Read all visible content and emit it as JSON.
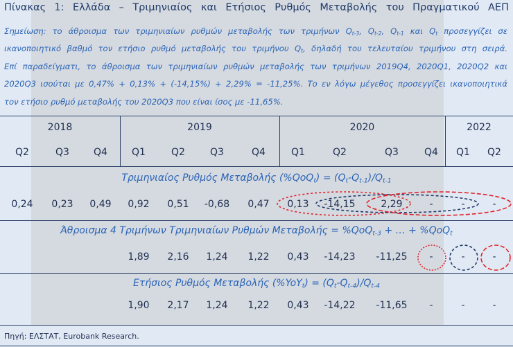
{
  "header": {
    "title": "Πίνακας 1: Ελλάδα – Τριμηνιαίος και Ετήσιος Ρυθμός Μεταβολής του Πραγματικού ΑΕΠ"
  },
  "note": [
    [
      [
        "Σημείωση: το άθροισμα των τριμηνιαίων ρυθμών μεταβολής των τριμήνων Q",
        "t-3"
      ],
      [
        ", Q",
        "t-2"
      ],
      [
        ", Q",
        "t-1"
      ],
      [
        " και Q",
        "t"
      ],
      [
        " προσεγγίζει σε"
      ]
    ],
    [
      [
        "ικανοποιητικό βαθμό τον ετήσιο ρυθμό μεταβολής του τριμήνου Q",
        "t"
      ],
      [
        ", δηλαδή του τελευταίου τριμήνου στη σειρά."
      ]
    ],
    [
      [
        "Επί παραδείγματι, το άθροισμα των τριμηνιαίων ρυθμών μεταβολής των τριμήνων 2019Q4, 2020Q1, 2020Q2 και"
      ]
    ],
    [
      [
        "2020Q3 ισούται με 0,47% + 0,13% + (-14,15%) + 2,29% = -11,25%. Το εν λόγω μέγεθος προσεγγίζει ικανοποιητικά"
      ]
    ],
    [
      [
        "τον ετήσιο ρυθμό μεταβολής του 2020Q3 που είναι ίσος με -11,65%."
      ]
    ]
  ],
  "table": {
    "years": [
      "2018",
      "2019",
      "2020",
      "2022"
    ],
    "quarters": [
      "Q2",
      "Q3",
      "Q4",
      "Q1",
      "Q2",
      "Q3",
      "Q4",
      "Q1",
      "Q2",
      "Q3",
      "Q4",
      "Q1",
      "Q2"
    ],
    "sections": [
      {
        "title": [
          [
            "Τριμηνιαίος Ρυθμός Μεταβολής (%QoQ",
            "t"
          ],
          [
            ") = (Q",
            "t"
          ],
          [
            "-Q",
            "t-1"
          ],
          [
            ")/Q",
            "t-1"
          ]
        ],
        "row": [
          "0,24",
          "0,23",
          "0,49",
          "0,92",
          "0,51",
          "-0,68",
          "0,47",
          "0,13",
          "-14,15",
          "2,29",
          "-",
          "-",
          "-"
        ]
      },
      {
        "title": [
          [
            "Άθροισμα 4 Τριμήνων Τριμηνιαίων Ρυθμών Μεταβολής = %QoQ",
            "t-3"
          ],
          [
            " + … + %QoQ",
            "t"
          ]
        ],
        "row": [
          null,
          null,
          null,
          "1,89",
          "2,16",
          "1,24",
          "1,22",
          "0,43",
          "-14,23",
          "-11,25",
          "-",
          "-",
          "-"
        ]
      },
      {
        "title": [
          [
            "Ετήσιος Ρυθμός Μεταβολής (%YoY",
            "t"
          ],
          [
            ") = (Q",
            "t"
          ],
          [
            "-Q",
            "t-4"
          ],
          [
            ")/Q",
            "t-4"
          ]
        ],
        "row": [
          null,
          null,
          null,
          "1,90",
          "2,17",
          "1,24",
          "1,22",
          "0,43",
          "-14,22",
          "-11,65",
          "-",
          "-",
          "-"
        ]
      }
    ]
  },
  "footer": {
    "source": "Πηγή: ΕΛΣΤΑΤ, Eurobank Research."
  }
}
